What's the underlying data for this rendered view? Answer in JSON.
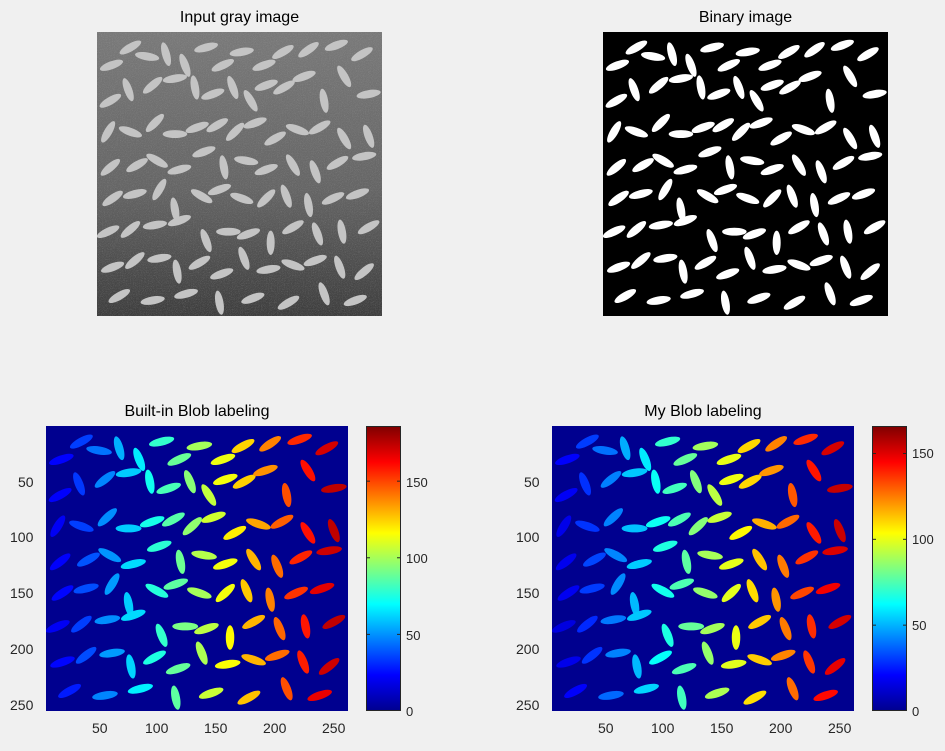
{
  "figure": {
    "panels": {
      "gray": {
        "title": "Input gray image"
      },
      "binary": {
        "title": "Binary image"
      },
      "builtin": {
        "title": "Built-in Blob labeling"
      },
      "mine": {
        "title": "My Blob labeling"
      }
    }
  },
  "axes": {
    "x_ticks": [
      "50",
      "100",
      "150",
      "200",
      "250"
    ],
    "y_ticks": [
      "50",
      "100",
      "150",
      "200",
      "250"
    ]
  },
  "colorbars": {
    "builtin": {
      "ticks": [
        "0",
        "50",
        "100",
        "150"
      ],
      "max": 186
    },
    "mine": {
      "ticks": [
        "0",
        "50",
        "100",
        "150"
      ],
      "max": 166
    }
  },
  "colors": {
    "background": "#f0f0f0",
    "label_background": "#00008f",
    "colormap": "jet"
  }
}
